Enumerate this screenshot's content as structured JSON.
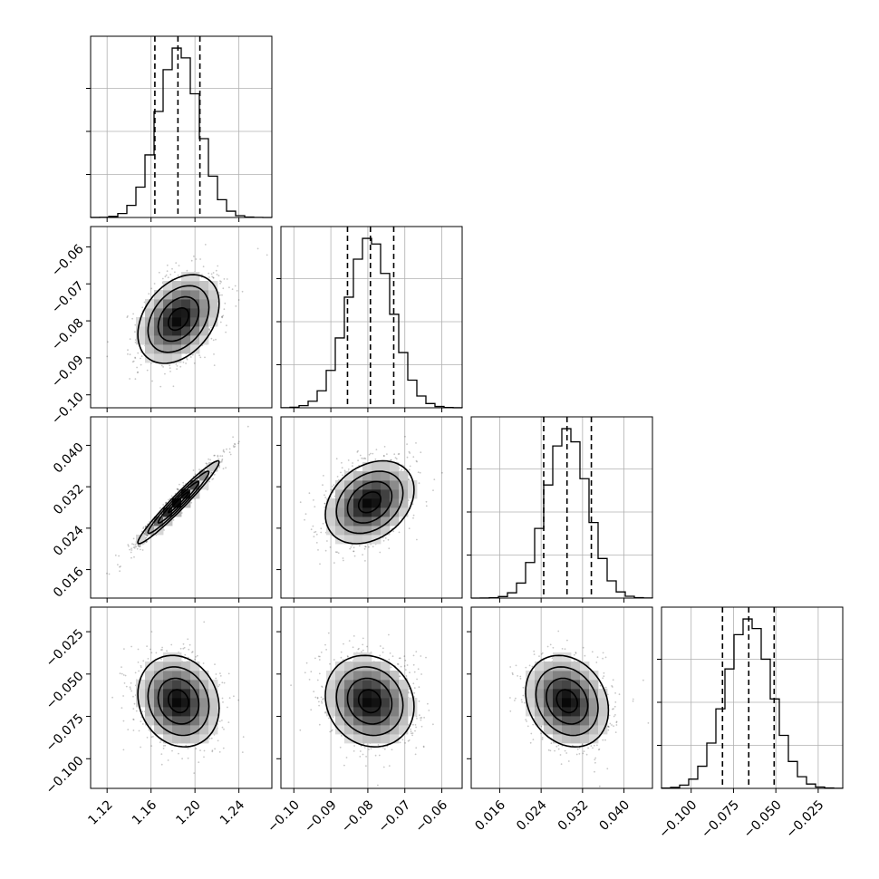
{
  "chart_data": {
    "type": "corner",
    "title": "",
    "parameters": [
      {
        "name": "",
        "range": [
          1.105,
          1.27
        ],
        "ticks": [
          1.12,
          1.16,
          1.2,
          1.24
        ],
        "tick_labels": [
          "1.12",
          "1.16",
          "1.20",
          "1.24"
        ],
        "mean": 1.185,
        "sd": 0.0185,
        "quantiles": [
          1.1635,
          1.1845,
          1.2045
        ]
      },
      {
        "name": "",
        "range": [
          -0.1035,
          -0.0545
        ],
        "ticks": [
          -0.1,
          -0.09,
          -0.08,
          -0.07,
          -0.06
        ],
        "tick_labels": [
          "−0.10",
          "−0.09",
          "−0.08",
          "−0.07",
          "−0.06"
        ],
        "mean": -0.0795,
        "sd": 0.006,
        "quantiles": [
          -0.0855,
          -0.0793,
          -0.073
        ]
      },
      {
        "name": "",
        "range": [
          0.0105,
          0.0455
        ],
        "ticks": [
          0.016,
          0.024,
          0.032,
          0.04
        ],
        "tick_labels": [
          "0.016",
          "0.024",
          "0.032",
          "0.040"
        ],
        "mean": 0.029,
        "sd": 0.004,
        "quantiles": [
          0.0245,
          0.029,
          0.0337
        ]
      },
      {
        "name": "",
        "range": [
          -0.1175,
          -0.0105
        ],
        "ticks": [
          -0.1,
          -0.075,
          -0.05,
          -0.025
        ],
        "tick_labels": [
          "−0.100",
          "−0.075",
          "−0.050",
          "−0.025"
        ],
        "mean": -0.066,
        "sd": 0.0135,
        "quantiles": [
          -0.0815,
          -0.066,
          -0.051
        ]
      }
    ],
    "correlations": [
      [
        1.0,
        0.35,
        0.97,
        -0.15
      ],
      [
        0.35,
        1.0,
        0.3,
        -0.12
      ],
      [
        0.97,
        0.3,
        1.0,
        -0.2
      ],
      [
        -0.15,
        -0.12,
        -0.2,
        1.0
      ]
    ],
    "histogram_bins": 20,
    "contour_levels_sigma": [
      0.5,
      1.0,
      1.5,
      2.0
    ],
    "grid": true,
    "colors": {
      "points": "#000000",
      "lines": "#000000",
      "grid": "#b0b0b0"
    }
  }
}
